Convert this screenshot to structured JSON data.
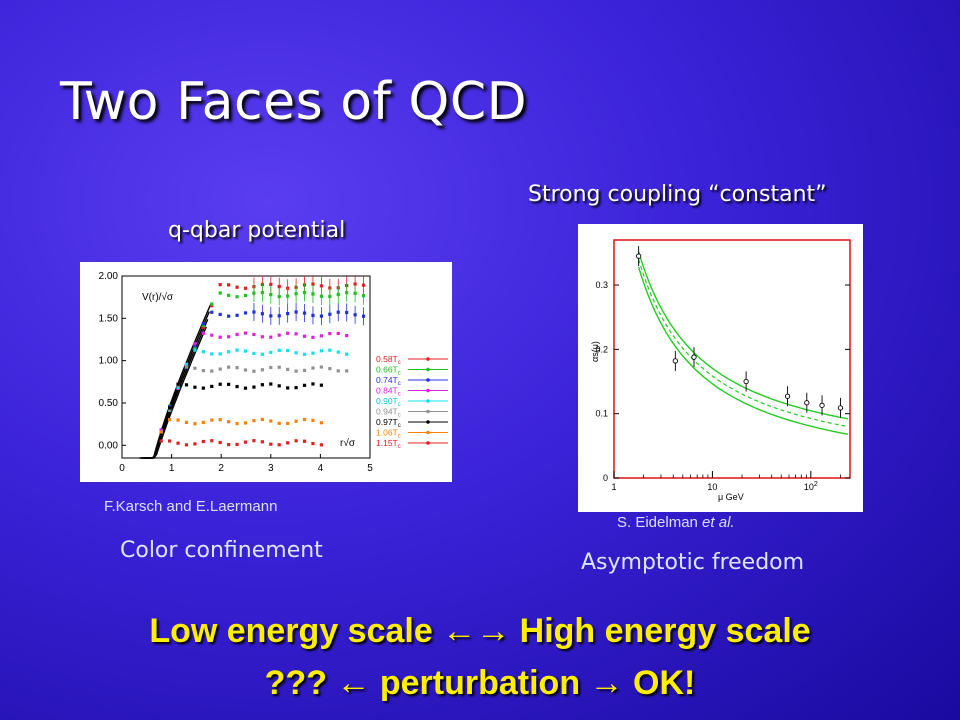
{
  "slide": {
    "title": "Two Faces of QCD",
    "left_heading": "q-qbar potential",
    "right_heading": "Strong coupling “constant”",
    "left_credit": "F.Karsch and E.Laermann",
    "right_credit_prefix": "S. Eidelman ",
    "right_credit_italic": "et al.",
    "left_caption": "Color confinement",
    "right_caption": "Asymptotic freedom",
    "bottom_line1_left": "Low energy scale ",
    "bottom_line1_right": " High energy scale",
    "bottom_line2_a": "??? ",
    "bottom_line2_b": " perturbation ",
    "bottom_line2_c": " OK!"
  },
  "chart_data": [
    {
      "type": "scatter",
      "title": "",
      "ylabel": "V(r)/√σ",
      "xlabel": "r√σ",
      "xlim": [
        0,
        5
      ],
      "ylim": [
        -0.15,
        2.0
      ],
      "xticks": [
        "0",
        "1",
        "2",
        "3",
        "4",
        "5"
      ],
      "yticks": [
        "0.00",
        "0.50",
        "1.00",
        "1.50",
        "2.00"
      ],
      "legend_position": "right",
      "series": [
        {
          "name": "0.58T",
          "color": "#e02020",
          "plateau": 1.88
        },
        {
          "name": "0.66T",
          "color": "#20c020",
          "plateau": 1.78
        },
        {
          "name": "0.74T",
          "color": "#2030e0",
          "plateau": 1.55
        },
        {
          "name": "0.84T",
          "color": "#e020e0",
          "plateau": 1.3
        },
        {
          "name": "0.90T",
          "color": "#10e0f0",
          "plateau": 1.1
        },
        {
          "name": "0.94T",
          "color": "#909090",
          "plateau": 0.9
        },
        {
          "name": "0.97T",
          "color": "#000000",
          "plateau": 0.7
        },
        {
          "name": "1.06T",
          "color": "#ff8000",
          "plateau": 0.28
        },
        {
          "name": "1.15T",
          "color": "#e02020",
          "plateau": 0.03
        }
      ],
      "legend_subscript": "c"
    },
    {
      "type": "line",
      "title": "",
      "ylabel": "αs(μ)",
      "xlabel": "μ GeV",
      "xscale": "log",
      "xlim": [
        1,
        250
      ],
      "ylim": [
        0,
        0.37
      ],
      "xticks": [
        "1",
        "10",
        "10"
      ],
      "xtick_superscript": "2",
      "yticks": [
        "0",
        "0.1",
        "0.2",
        "0.3"
      ],
      "points": [
        {
          "x": 1.78,
          "y": 0.345
        },
        {
          "x": 4.2,
          "y": 0.182
        },
        {
          "x": 6.5,
          "y": 0.188
        },
        {
          "x": 22,
          "y": 0.15
        },
        {
          "x": 58,
          "y": 0.127
        },
        {
          "x": 91,
          "y": 0.117
        },
        {
          "x": 130,
          "y": 0.113
        },
        {
          "x": 200,
          "y": 0.109
        }
      ],
      "band_color": "#22cc22"
    }
  ]
}
